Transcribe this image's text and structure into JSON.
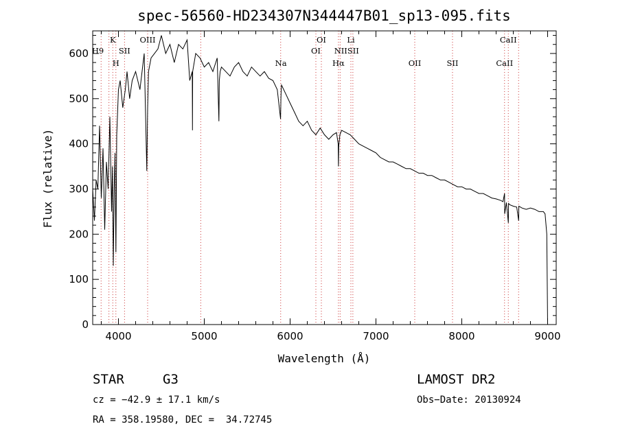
{
  "chart_data": {
    "type": "line",
    "title": "spec-56560-HD234307N344447B01_sp13-095.fits",
    "xlabel": "Wavelength (Å)",
    "ylabel": "Flux (relative)",
    "xlim": [
      3700,
      9100
    ],
    "ylim": [
      0,
      650
    ],
    "xticks": [
      4000,
      5000,
      6000,
      7000,
      8000,
      9000
    ],
    "yticks": [
      0,
      100,
      200,
      300,
      400,
      500,
      600
    ],
    "series": [
      {
        "name": "flux",
        "x": [
          3700,
          3720,
          3740,
          3760,
          3780,
          3800,
          3820,
          3840,
          3860,
          3880,
          3900,
          3920,
          3930,
          3940,
          3950,
          3960,
          3970,
          3980,
          4000,
          4020,
          4050,
          4080,
          4100,
          4130,
          4160,
          4200,
          4250,
          4300,
          4330,
          4340,
          4350,
          4380,
          4420,
          4460,
          4500,
          4550,
          4600,
          4650,
          4700,
          4750,
          4800,
          4830,
          4860,
          4862,
          4865,
          4900,
          4950,
          5000,
          5050,
          5100,
          5150,
          5170,
          5175,
          5185,
          5200,
          5250,
          5300,
          5350,
          5400,
          5450,
          5500,
          5550,
          5600,
          5650,
          5700,
          5750,
          5800,
          5850,
          5889,
          5893,
          5896,
          5900,
          5950,
          6000,
          6050,
          6100,
          6150,
          6200,
          6250,
          6300,
          6350,
          6400,
          6450,
          6500,
          6540,
          6560,
          6563,
          6566,
          6580,
          6600,
          6650,
          6700,
          6750,
          6800,
          6850,
          6900,
          6950,
          7000,
          7050,
          7100,
          7150,
          7200,
          7250,
          7300,
          7350,
          7400,
          7450,
          7500,
          7550,
          7600,
          7650,
          7700,
          7750,
          7800,
          7850,
          7900,
          7950,
          8000,
          8050,
          8100,
          8150,
          8200,
          8250,
          8300,
          8350,
          8400,
          8450,
          8480,
          8498,
          8500,
          8520,
          8542,
          8545,
          8560,
          8600,
          8640,
          8662,
          8665,
          8700,
          8750,
          8800,
          8850,
          8900,
          8950,
          8970,
          8990,
          9000
        ],
        "y": [
          300,
          230,
          320,
          300,
          440,
          280,
          390,
          210,
          360,
          300,
          460,
          250,
          350,
          130,
          300,
          380,
          160,
          420,
          520,
          540,
          480,
          520,
          560,
          500,
          540,
          560,
          520,
          600,
          340,
          480,
          560,
          590,
          600,
          610,
          640,
          600,
          620,
          580,
          620,
          610,
          630,
          540,
          560,
          430,
          560,
          600,
          590,
          570,
          580,
          560,
          590,
          450,
          540,
          560,
          570,
          560,
          550,
          570,
          580,
          560,
          550,
          570,
          560,
          550,
          560,
          545,
          540,
          520,
          455,
          500,
          520,
          530,
          510,
          490,
          470,
          450,
          440,
          450,
          430,
          420,
          435,
          420,
          410,
          420,
          425,
          400,
          350,
          395,
          420,
          430,
          425,
          420,
          410,
          400,
          395,
          390,
          385,
          380,
          370,
          365,
          360,
          360,
          355,
          350,
          345,
          345,
          340,
          335,
          335,
          330,
          330,
          325,
          320,
          320,
          315,
          310,
          305,
          305,
          300,
          300,
          295,
          290,
          290,
          285,
          280,
          278,
          275,
          272,
          290,
          245,
          270,
          225,
          268,
          265,
          262,
          260,
          230,
          262,
          258,
          255,
          258,
          255,
          250,
          250,
          245,
          200,
          0
        ]
      }
    ],
    "line_marks": {
      "dotted_lines": [
        3798,
        3889,
        3934,
        3970,
        4071,
        4340,
        4959,
        5890,
        6300,
        6364,
        6563,
        6583,
        6708,
        6731,
        7452,
        7892,
        8498,
        8542,
        8662
      ],
      "labels": [
        {
          "text": "H9",
          "wave": 3760,
          "row": "row1"
        },
        {
          "text": "K",
          "wave": 3934,
          "row": "row0"
        },
        {
          "text": "SII",
          "wave": 4071,
          "row": "row1"
        },
        {
          "text": "H",
          "wave": 3970,
          "row": "row2"
        },
        {
          "text": "OIII",
          "wave": 4340,
          "row": "row0"
        },
        {
          "text": "Na",
          "wave": 5893,
          "row": "row2"
        },
        {
          "text": "OI",
          "wave": 6364,
          "row": "row0"
        },
        {
          "text": "OI",
          "wave": 6300,
          "row": "row1"
        },
        {
          "text": "Li",
          "wave": 6708,
          "row": "row0"
        },
        {
          "text": "NIISII",
          "wave": 6658,
          "row": "row1"
        },
        {
          "text": "Hα",
          "wave": 6563,
          "row": "row2"
        },
        {
          "text": "OII",
          "wave": 7452,
          "row": "row2"
        },
        {
          "text": "SII",
          "wave": 7892,
          "row": "row2"
        },
        {
          "text": "CaII",
          "wave": 8542,
          "row": "row0"
        },
        {
          "text": "CaII",
          "wave": 8498,
          "row": "row2"
        }
      ]
    }
  },
  "info": {
    "object_type": "STAR",
    "subclass": "G3",
    "survey": "LAMOST DR2",
    "cz": "cz = −42.9 ± 17.1 km/s",
    "obs_date": "Obs−Date: 20130924",
    "coords": "RA = 358.19580, DEC =  34.72745"
  }
}
